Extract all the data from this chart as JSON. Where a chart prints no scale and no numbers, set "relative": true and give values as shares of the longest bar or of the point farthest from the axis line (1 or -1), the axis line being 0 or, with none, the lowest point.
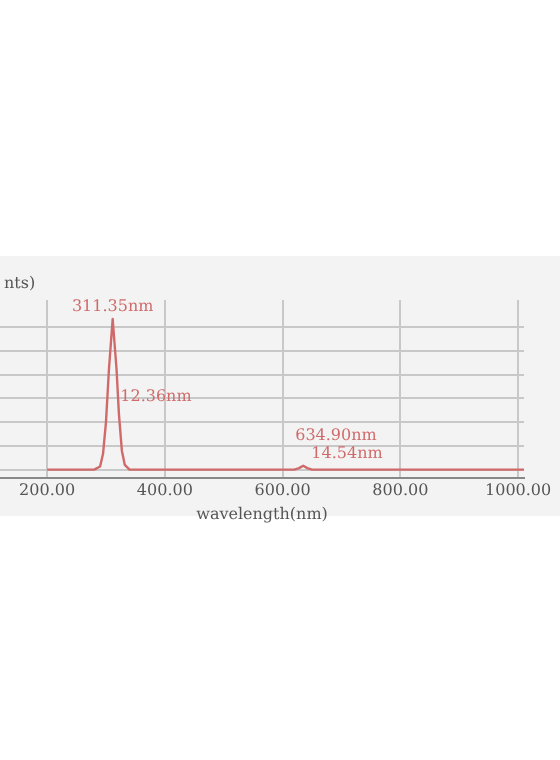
{
  "chart_data": {
    "type": "line",
    "ylabel": "nts)",
    "xlabel": "wavelength(nm)",
    "relative": true,
    "color": "#d06a6a",
    "x": [
      200,
      280,
      290,
      295,
      300,
      305,
      311.35,
      318,
      322,
      327,
      332,
      340,
      620,
      628,
      635,
      642,
      650,
      1010
    ],
    "values": [
      0.05,
      0.05,
      0.07,
      0.15,
      0.35,
      0.68,
      1,
      0.68,
      0.4,
      0.17,
      0.08,
      0.05,
      0.05,
      0.06,
      0.075,
      0.06,
      0.05,
      0.05
    ],
    "xlim": [
      120,
      1010
    ],
    "xticks": [
      {
        "value": 200,
        "label": "200.00"
      },
      {
        "value": 400,
        "label": "400.00"
      },
      {
        "value": 600,
        "label": "600.00"
      },
      {
        "value": 800,
        "label": "800.00"
      },
      {
        "value": 1000,
        "label": "1000.00"
      }
    ],
    "grid": true,
    "marker": "none",
    "line_style": "solid",
    "annotations": [
      {
        "text": "311.35nm",
        "x": 311.35,
        "y": 1
      },
      {
        "text": "12.36nm",
        "x": 317.5,
        "y": 0.51
      },
      {
        "text": "634.90nm",
        "x": 635,
        "y": 0.075
      },
      {
        "text": "14.54nm",
        "x": 642,
        "y": 0.06
      }
    ]
  }
}
